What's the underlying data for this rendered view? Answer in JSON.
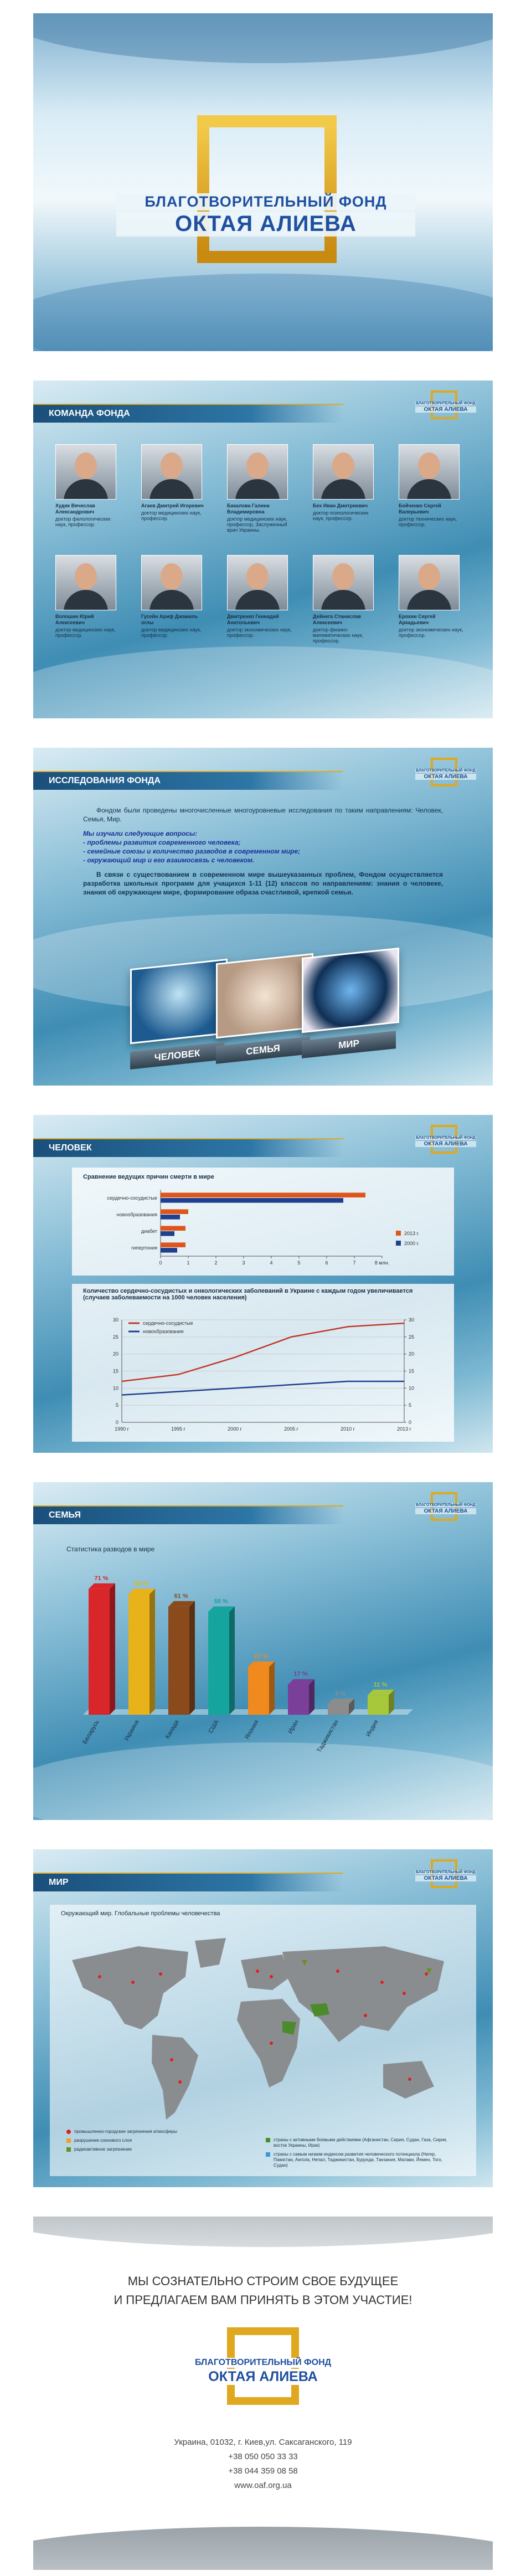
{
  "logo": {
    "line1": "БЛАГОТВОРИТЕЛЬНЫЙ ФОНД",
    "line2": "ОКТАЯ АЛИЕВА"
  },
  "team": {
    "title": "КОМАНДА ФОНДА",
    "members": [
      {
        "name": "Худяк Вячеслав Александрович",
        "desc": "доктор филологических наук, профессор."
      },
      {
        "name": "Агаев Дмитрий Игоревич",
        "desc": "доктор медицинских наук, профессор."
      },
      {
        "name": "Бакалова Галина Владимировна",
        "desc": "доктор медицинских наук, профессор, Заслуженный врач Украины."
      },
      {
        "name": "Бех Иван Дмитриевич",
        "desc": "доктор психологических наук, профессор."
      },
      {
        "name": "Бойченко Сергей Валерьевич",
        "desc": "доктор технических наук, профессор."
      },
      {
        "name": "Волошин Юрий Алексеевич",
        "desc": "доктор медицинских наук, профессор."
      },
      {
        "name": "Гусейн Ариф Джамиль оглы",
        "desc": "доктор медицинских наук, профессор."
      },
      {
        "name": "Дмитренко Геннадий Анатольевич",
        "desc": "доктор экономических наук, профессор."
      },
      {
        "name": "Дейнега Станислав Алексеевич",
        "desc": "доктор физико-математических наук, профессор."
      },
      {
        "name": "Ерохин Сергей Аркадьевич",
        "desc": "доктор экономических наук, профессор."
      }
    ]
  },
  "research": {
    "title": "ИССЛЕДОВАНИЯ ФОНДА",
    "intro": "Фондом были проведены многочисленные многоуровневые исследования по таким направлениям: Человек, Семья, Мир.",
    "questions_title": "Мы изучали следующие вопросы:",
    "questions": [
      "- проблемы развития современного человека;",
      "- семейные союзы и количество разводов в современном мире;",
      "- окружающий мир и его взаимосвязь с человеком."
    ],
    "conclusion": "В связи с существованием в современном мире вышеуказанных проблем, Фондом осуществляется разработка школьных программ для учащихся 1-11 (12) классов по направлениям: знания о человеке, знания об окружающем мире, формирование образа счастливой, крепкой семьи.",
    "cards": [
      "ЧЕЛОВЕК",
      "СЕМЬЯ",
      "МИР"
    ]
  },
  "human": {
    "title": "ЧЕЛОВЕК",
    "chart_data": [
      {
        "type": "hbar",
        "title": "Сравнение ведущих причин смерти в мире",
        "categories": [
          "сердечно-сосудистые",
          "новообразования",
          "диабет",
          "гипертония"
        ],
        "series": [
          {
            "name": "2013 г.",
            "color": "#e0551b",
            "values": [
              7.4,
              1.0,
              0.9,
              0.9
            ]
          },
          {
            "name": "2000 г.",
            "color": "#1f3f8f",
            "values": [
              6.6,
              0.7,
              0.5,
              0.6
            ]
          }
        ],
        "xlim": [
          0,
          8
        ],
        "xticks": [
          0,
          1,
          2,
          3,
          4,
          5,
          6,
          7,
          {
            "value": 8,
            "label": "8 млн."
          }
        ]
      },
      {
        "type": "line",
        "title": "Количество сердечно-сосудистых и онкологических заболеваний в Украине с каждым годом увеличивается (случаев заболеваемости на 1000 человек населения)",
        "categories": [
          "1990 г",
          "1995 г",
          "2000 г",
          "2005 г",
          "2010 г",
          "2013 г"
        ],
        "series": [
          {
            "name": "сердечно-сосудистые",
            "color": "#c0392b",
            "values": [
              12,
              14,
              19,
              25,
              28,
              29
            ]
          },
          {
            "name": "новообразования",
            "color": "#1f3f8f",
            "values": [
              8,
              9,
              10,
              11,
              12,
              12
            ]
          }
        ],
        "ylim": [
          0,
          30
        ],
        "yticks": [
          0,
          5,
          10,
          15,
          20,
          25,
          30
        ],
        "y2lim": [
          0,
          30
        ],
        "y2ticks": [
          0,
          5,
          10,
          15,
          20,
          25,
          30
        ]
      }
    ]
  },
  "family": {
    "title": "СЕМЬЯ",
    "chart_data": {
      "type": "bar3d",
      "title": "Статистика разводов в мире",
      "categories": [
        "Беларусь",
        "Украина",
        "Канада",
        "США",
        "Япония",
        "Иран",
        "Таджикистан",
        "Индия"
      ],
      "values": [
        71,
        68,
        61,
        58,
        27,
        17,
        6,
        11
      ],
      "value_labels": [
        "71 %",
        "68 %",
        "61 %",
        "58 %",
        "27 %",
        "17 %",
        "6 %",
        "11 %"
      ],
      "colors": [
        "#d8262a",
        "#e8b21a",
        "#8b4a1c",
        "#16a59e",
        "#f08a1e",
        "#7a3f98",
        "#8c8c8c",
        "#a8c83c"
      ]
    }
  },
  "world": {
    "title": "МИР",
    "map_title": "Окружающий мир. Глобальные проблемы человечества",
    "legend": [
      "промышленно-городские загрязнения атмосферы",
      "разрушение озонового слоя",
      "радиоактивное загрязнение",
      "страны с активными боевыми действиями (Афганистан, Сирия, Судан, Газа, Сирия, восток Украины, Ирак)",
      "страны с самым низким индексом развития человеческого потенциала (Нигер, Пакистан, Ангола, Непал, Таджикистан, Бурунди, Танзания, Малави, Йемен, Того, Судан)"
    ]
  },
  "contact": {
    "slogan1": "МЫ СОЗНАТЕЛЬНО СТРОИМ СВОЕ БУДУЩЕЕ",
    "slogan2": "И ПРЕДЛАГАЕМ ВАМ ПРИНЯТЬ В ЭТОМ УЧАСТИЕ!",
    "address": "Украина, 01032, г. Киев,ул. Саксаганского, 119",
    "phone1": "+38 050 050 33 33",
    "phone2": "+38 044 359 08 58",
    "site": "www.oaf.org.ua"
  }
}
